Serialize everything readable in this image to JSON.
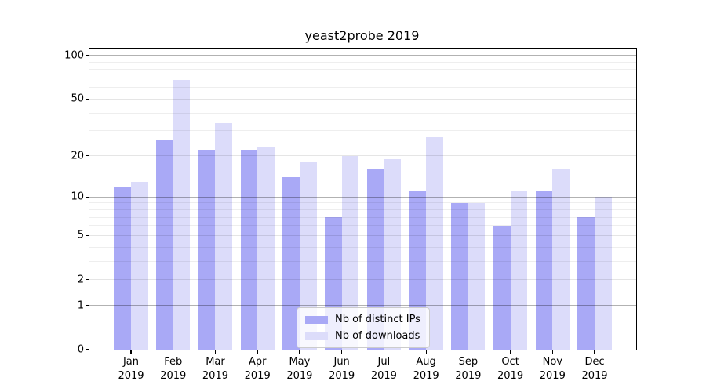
{
  "chart_data": {
    "type": "bar",
    "title": "yeast2probe 2019",
    "year_label": "2019",
    "categories": [
      "Jan",
      "Feb",
      "Mar",
      "Apr",
      "May",
      "Jun",
      "Jul",
      "Aug",
      "Sep",
      "Oct",
      "Nov",
      "Dec"
    ],
    "series": [
      {
        "name": "Nb of distinct IPs",
        "color": "#a9a9f6",
        "values": [
          12,
          26,
          22,
          22,
          14,
          7,
          16,
          11,
          9,
          6,
          11,
          7
        ]
      },
      {
        "name": "Nb of downloads",
        "color": "#dcdcfa",
        "values": [
          13,
          68,
          34,
          23,
          18,
          20,
          19,
          27,
          9,
          11,
          16,
          10
        ]
      }
    ],
    "yscale": "log1p",
    "ylim": [
      0,
      112
    ],
    "yticks_major": [
      0,
      1,
      2,
      5,
      10,
      20,
      50,
      100
    ],
    "yticks_strong": [
      1,
      10,
      100
    ],
    "yticks_minor": [
      3,
      4,
      6,
      7,
      8,
      9,
      30,
      40,
      60,
      70,
      80,
      90
    ],
    "grid": "horizontal",
    "legend_position": "inside-bottom-center",
    "xlabel": "",
    "ylabel": ""
  }
}
